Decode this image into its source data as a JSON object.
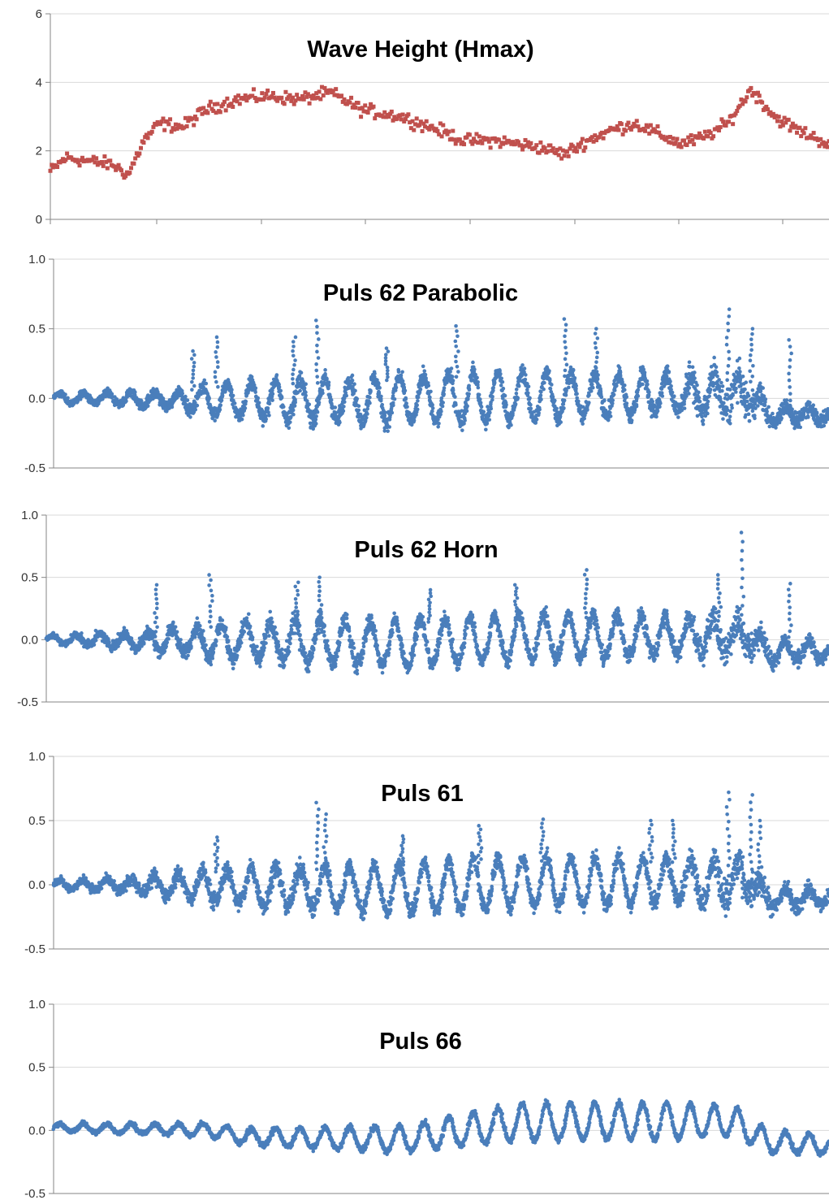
{
  "chart_data": [
    {
      "type": "scatter",
      "title": "Wave Height (Hmax)",
      "ylim": [
        0,
        6
      ],
      "yticks": [
        "0",
        "2",
        "4",
        "6"
      ],
      "grid": true,
      "series": [
        {
          "color": "#c0504d",
          "marker": "square",
          "trend_x": [
            0,
            0.02,
            0.05,
            0.08,
            0.1,
            0.12,
            0.14,
            0.17,
            0.2,
            0.24,
            0.28,
            0.32,
            0.36,
            0.4,
            0.45,
            0.5,
            0.53,
            0.57,
            0.6,
            0.63,
            0.66,
            0.69,
            0.72,
            0.75,
            0.78,
            0.81,
            0.84,
            0.87,
            0.9,
            0.93,
            0.96,
            1.0
          ],
          "trend_y": [
            1.4,
            1.8,
            1.7,
            1.6,
            1.3,
            2.3,
            2.8,
            2.7,
            3.2,
            3.5,
            3.6,
            3.5,
            3.7,
            3.2,
            3.0,
            2.6,
            2.3,
            2.3,
            2.2,
            2.1,
            1.9,
            2.3,
            2.6,
            2.8,
            2.5,
            2.2,
            2.4,
            2.8,
            3.8,
            3.0,
            2.6,
            2.2
          ],
          "scatter": 0.35
        }
      ]
    },
    {
      "type": "scatter",
      "title": "Puls 62 Parabolic",
      "ylim": [
        -0.5,
        1.0
      ],
      "yticks": [
        "-0.5",
        "0.0",
        "0.5",
        "1.0"
      ],
      "grid": true,
      "series": [
        {
          "color": "#4a7ebb",
          "marker": "dot",
          "cycles": 32,
          "amp_x": [
            0,
            0.15,
            0.2,
            0.3,
            0.45,
            0.55,
            0.7,
            0.85,
            0.9,
            0.92,
            1.0
          ],
          "amp_y": [
            0.03,
            0.05,
            0.1,
            0.13,
            0.16,
            0.17,
            0.15,
            0.12,
            0.1,
            0.06,
            0.05
          ],
          "base_x": [
            0,
            0.2,
            0.4,
            0.6,
            0.85,
            0.9,
            0.92,
            1.0
          ],
          "base_y": [
            0.0,
            -0.02,
            -0.03,
            0.0,
            0.02,
            0.02,
            -0.12,
            -0.12
          ],
          "noise_x": [
            0,
            0.2,
            0.35,
            0.5,
            0.8,
            0.87,
            0.93,
            1.0
          ],
          "noise_y": [
            0.02,
            0.04,
            0.06,
            0.05,
            0.06,
            0.12,
            0.05,
            0.05
          ],
          "spikes": [
            [
              0.18,
              0.34
            ],
            [
              0.21,
              0.44
            ],
            [
              0.31,
              0.44
            ],
            [
              0.34,
              0.56
            ],
            [
              0.43,
              0.36
            ],
            [
              0.52,
              0.52
            ],
            [
              0.66,
              0.57
            ],
            [
              0.7,
              0.5
            ],
            [
              0.87,
              0.64
            ],
            [
              0.9,
              0.5
            ],
            [
              0.95,
              0.42
            ]
          ]
        }
      ]
    },
    {
      "type": "scatter",
      "title": "Puls 62 Horn",
      "ylim": [
        -0.5,
        1.0
      ],
      "yticks": [
        "-0.5",
        "0.0",
        "0.5",
        "1.0"
      ],
      "grid": true,
      "series": [
        {
          "color": "#4a7ebb",
          "marker": "dot",
          "cycles": 32,
          "amp_x": [
            0,
            0.1,
            0.2,
            0.35,
            0.5,
            0.7,
            0.85,
            0.92,
            1.0
          ],
          "amp_y": [
            0.03,
            0.05,
            0.12,
            0.17,
            0.18,
            0.17,
            0.14,
            0.08,
            0.06
          ],
          "base_x": [
            0,
            0.2,
            0.45,
            0.6,
            0.85,
            0.9,
            0.92,
            1.0
          ],
          "base_y": [
            0.0,
            -0.02,
            -0.05,
            0.0,
            0.02,
            0.02,
            -0.1,
            -0.1
          ],
          "noise_x": [
            0,
            0.15,
            0.3,
            0.5,
            0.8,
            0.88,
            0.93,
            1.0
          ],
          "noise_y": [
            0.02,
            0.05,
            0.07,
            0.05,
            0.06,
            0.12,
            0.06,
            0.05
          ],
          "spikes": [
            [
              0.14,
              0.44
            ],
            [
              0.21,
              0.52
            ],
            [
              0.32,
              0.46
            ],
            [
              0.35,
              0.5
            ],
            [
              0.49,
              0.4
            ],
            [
              0.6,
              0.44
            ],
            [
              0.69,
              0.56
            ],
            [
              0.86,
              0.52
            ],
            [
              0.89,
              0.86
            ],
            [
              0.95,
              0.45
            ]
          ]
        }
      ]
    },
    {
      "type": "scatter",
      "title": "Puls 61",
      "ylim": [
        -0.5,
        1.0
      ],
      "yticks": [
        "-0.5",
        "0.0",
        "0.5",
        "1.0"
      ],
      "grid": true,
      "series": [
        {
          "color": "#4a7ebb",
          "marker": "dot",
          "cycles": 32,
          "amp_x": [
            0,
            0.1,
            0.2,
            0.35,
            0.5,
            0.7,
            0.85,
            0.92,
            1.0
          ],
          "amp_y": [
            0.03,
            0.05,
            0.12,
            0.16,
            0.19,
            0.18,
            0.15,
            0.08,
            0.06
          ],
          "base_x": [
            0,
            0.2,
            0.45,
            0.6,
            0.85,
            0.9,
            0.92,
            1.0
          ],
          "base_y": [
            0.0,
            -0.02,
            -0.05,
            0.0,
            0.02,
            0.02,
            -0.12,
            -0.1
          ],
          "noise_x": [
            0,
            0.15,
            0.3,
            0.5,
            0.8,
            0.88,
            0.93,
            1.0
          ],
          "noise_y": [
            0.02,
            0.05,
            0.07,
            0.05,
            0.06,
            0.13,
            0.06,
            0.05
          ],
          "spikes": [
            [
              0.21,
              0.37
            ],
            [
              0.34,
              0.64
            ],
            [
              0.35,
              0.55
            ],
            [
              0.45,
              0.38
            ],
            [
              0.55,
              0.46
            ],
            [
              0.63,
              0.51
            ],
            [
              0.77,
              0.5
            ],
            [
              0.8,
              0.5
            ],
            [
              0.87,
              0.72
            ],
            [
              0.9,
              0.7
            ],
            [
              0.91,
              0.5
            ]
          ]
        }
      ]
    },
    {
      "type": "scatter",
      "title": "Puls 66",
      "ylim": [
        -0.5,
        1.0
      ],
      "yticks": [
        "-0.5",
        "0.0",
        "0.5",
        "1.0"
      ],
      "grid": true,
      "series": [
        {
          "color": "#4a7ebb",
          "marker": "dot",
          "cycles": 32,
          "amp_x": [
            0,
            0.15,
            0.3,
            0.45,
            0.6,
            0.8,
            0.92,
            1.0
          ],
          "amp_y": [
            0.03,
            0.04,
            0.07,
            0.1,
            0.14,
            0.14,
            0.09,
            0.07
          ],
          "base_x": [
            0,
            0.2,
            0.25,
            0.45,
            0.6,
            0.88,
            0.92,
            1.0
          ],
          "base_y": [
            0.02,
            0.0,
            -0.06,
            -0.08,
            0.05,
            0.06,
            -0.1,
            -0.12
          ],
          "noise_x": [
            0,
            0.5,
            1.0
          ],
          "noise_y": [
            0.015,
            0.02,
            0.02
          ],
          "spikes": []
        }
      ]
    }
  ]
}
